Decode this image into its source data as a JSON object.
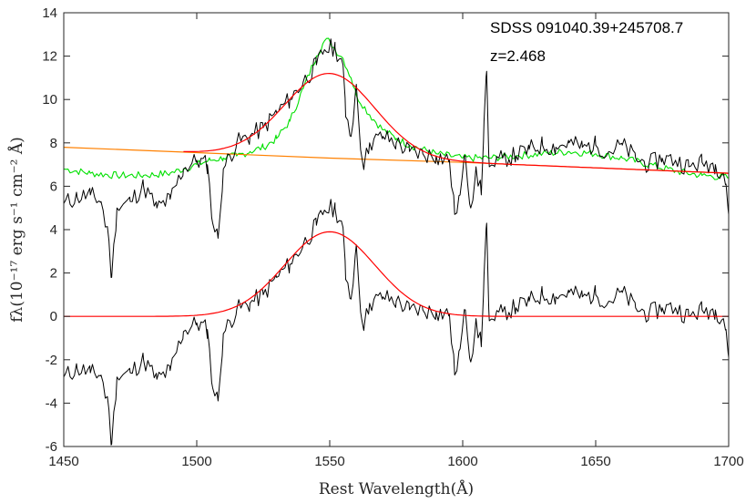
{
  "chart_data": {
    "type": "line",
    "title": "",
    "xlabel": "Rest Wavelength(Å)",
    "ylabel": "fλ(10⁻¹⁷ erg s⁻¹ cm⁻² Å)",
    "xlim": [
      1450,
      1700
    ],
    "ylim": [
      -6,
      14
    ],
    "grid": false,
    "x_ticks": [
      "1450",
      "1500",
      "1550",
      "1600",
      "1650",
      "1700"
    ],
    "y_ticks": [
      "-6",
      "-4",
      "-2",
      "0",
      "2",
      "4",
      "6",
      "8",
      "10",
      "12",
      "14"
    ],
    "annotations": [
      "SDSS 091040.39+245708.7",
      "z=2.468"
    ],
    "series": [
      {
        "role": "observed spectrum (top)",
        "color": "#000000",
        "x": [
          1450,
          1455,
          1460,
          1464,
          1467,
          1468,
          1470,
          1475,
          1480,
          1485,
          1490,
          1495,
          1500,
          1504,
          1506,
          1508,
          1510,
          1515,
          1520,
          1525,
          1530,
          1535,
          1540,
          1545,
          1548,
          1552,
          1555,
          1556,
          1558,
          1560,
          1562,
          1563,
          1565,
          1570,
          1575,
          1580,
          1585,
          1590,
          1595,
          1597,
          1599,
          1601,
          1603,
          1605,
          1607,
          1608,
          1609,
          1610,
          1612,
          1615,
          1620,
          1625,
          1630,
          1635,
          1640,
          1645,
          1650,
          1655,
          1660,
          1665,
          1670,
          1675,
          1680,
          1685,
          1690,
          1695,
          1698,
          1699,
          1700
        ],
        "y": [
          5.2,
          5.5,
          5.6,
          5.3,
          3.5,
          1.8,
          5.0,
          5.3,
          6.0,
          5.0,
          5.4,
          6.8,
          7.2,
          7.0,
          4.3,
          3.6,
          6.8,
          8.0,
          8.3,
          8.7,
          9.4,
          10.0,
          10.8,
          11.6,
          12.3,
          12.4,
          11.6,
          9.2,
          8.3,
          10.7,
          7.4,
          7.0,
          8.0,
          8.3,
          8.0,
          7.6,
          7.5,
          7.4,
          7.2,
          4.7,
          5.6,
          7.4,
          5.0,
          6.9,
          5.6,
          9.0,
          11.3,
          6.9,
          6.9,
          7.3,
          7.4,
          7.7,
          7.9,
          7.8,
          8.0,
          7.8,
          7.9,
          7.6,
          7.9,
          7.3,
          7.0,
          7.3,
          7.2,
          6.9,
          7.1,
          7.0,
          6.6,
          6.1,
          4.7
        ]
      },
      {
        "role": "model (green)",
        "color": "#00e000",
        "x": [
          1450,
          1460,
          1470,
          1480,
          1490,
          1495,
          1500,
          1505,
          1510,
          1515,
          1520,
          1525,
          1530,
          1535,
          1540,
          1545,
          1548,
          1550,
          1552,
          1555,
          1558,
          1560,
          1565,
          1570,
          1575,
          1580,
          1590,
          1600,
          1610,
          1620,
          1630,
          1640,
          1650,
          1660,
          1670,
          1680,
          1690,
          1700
        ],
        "y": [
          6.8,
          6.6,
          6.5,
          6.5,
          6.6,
          6.8,
          7.0,
          7.2,
          7.3,
          7.4,
          7.6,
          7.8,
          8.2,
          9.0,
          10.5,
          12.0,
          12.7,
          12.7,
          12.3,
          11.9,
          11.0,
          10.2,
          9.3,
          8.6,
          8.2,
          7.9,
          7.5,
          7.3,
          7.3,
          7.4,
          7.5,
          7.6,
          7.5,
          7.3,
          7.0,
          6.7,
          6.5,
          6.4
        ]
      },
      {
        "role": "continuum (orange)",
        "color": "#ff8000",
        "x": [
          1450,
          1500,
          1550,
          1600,
          1650,
          1700
        ],
        "y": [
          7.8,
          7.55,
          7.3,
          7.1,
          6.85,
          6.6
        ]
      },
      {
        "role": "gaussian fit + continuum (top red)",
        "color": "#ff0000",
        "center": 1550,
        "sigma": 17,
        "amplitude": 3.9
      },
      {
        "role": "continuum-subtracted spectrum (bottom)",
        "color": "#000000",
        "x": [
          1450,
          1455,
          1460,
          1464,
          1467,
          1468,
          1470,
          1475,
          1480,
          1485,
          1490,
          1495,
          1500,
          1504,
          1506,
          1508,
          1510,
          1515,
          1520,
          1525,
          1530,
          1535,
          1540,
          1545,
          1548,
          1552,
          1555,
          1556,
          1558,
          1560,
          1562,
          1563,
          1565,
          1570,
          1575,
          1580,
          1585,
          1590,
          1595,
          1597,
          1599,
          1601,
          1603,
          1605,
          1607,
          1608,
          1609,
          1610,
          1612,
          1615,
          1620,
          1625,
          1630,
          1635,
          1640,
          1645,
          1650,
          1655,
          1660,
          1665,
          1670,
          1675,
          1680,
          1685,
          1690,
          1695,
          1698,
          1699,
          1700
        ],
        "y": [
          -2.8,
          -2.4,
          -2.6,
          -2.7,
          -4.3,
          -5.9,
          -2.8,
          -2.6,
          -2.0,
          -2.9,
          -2.5,
          -0.7,
          -0.3,
          -0.6,
          -3.3,
          -3.9,
          -0.8,
          0.3,
          0.6,
          1.0,
          1.8,
          2.4,
          3.3,
          4.2,
          4.9,
          5.0,
          4.1,
          1.7,
          0.8,
          3.3,
          -0.1,
          -0.4,
          0.6,
          0.9,
          0.7,
          0.3,
          0.3,
          0.2,
          0.1,
          -2.7,
          -1.5,
          0.3,
          -2.1,
          -0.1,
          -1.4,
          1.9,
          4.3,
          -0.2,
          -0.2,
          0.2,
          0.4,
          0.7,
          1.0,
          0.9,
          1.1,
          0.9,
          1.0,
          0.7,
          1.1,
          0.4,
          0.1,
          0.4,
          0.4,
          0.0,
          0.3,
          0.3,
          -0.1,
          -0.6,
          -1.9
        ]
      },
      {
        "role": "gaussian fit (bottom red)",
        "color": "#ff0000",
        "center": 1550,
        "sigma": 17,
        "amplitude": 3.9
      }
    ]
  }
}
